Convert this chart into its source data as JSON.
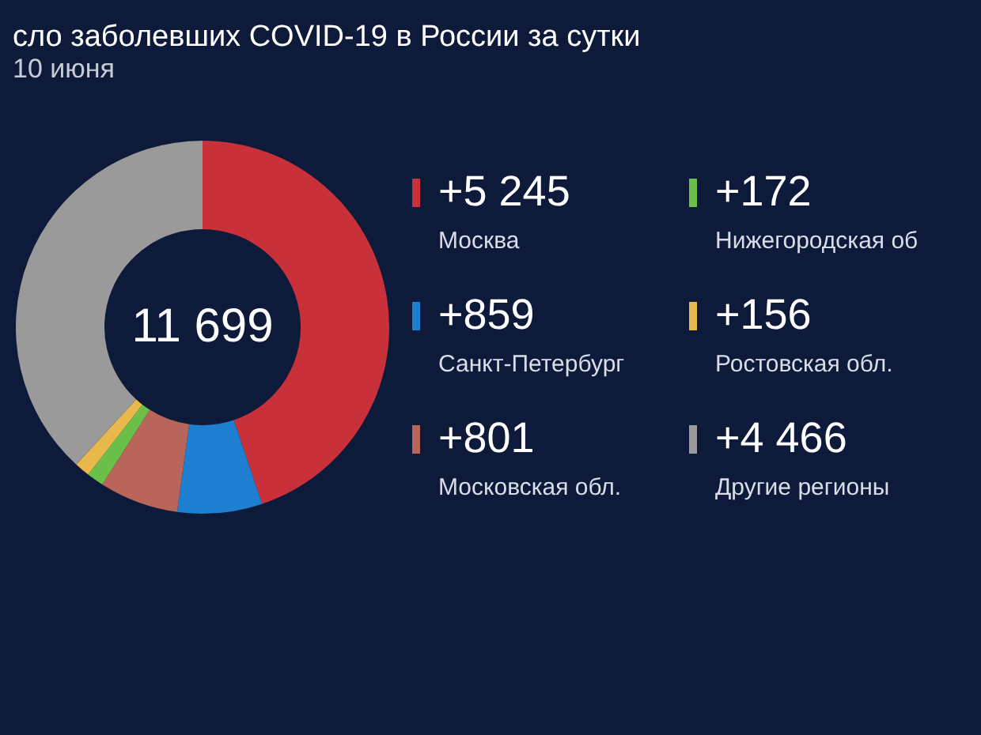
{
  "chart_data": {
    "type": "donut",
    "title": "сло заболевших COVID-19 в России за сутки",
    "subtitle": "10 июня",
    "categories": [
      "Москва",
      "Санкт-Петербург",
      "Московская обл.",
      "Нижегородская об",
      "Ростовская обл.",
      "Другие регионы"
    ],
    "values": [
      5245,
      859,
      801,
      172,
      156,
      4466
    ],
    "colors": [
      "#c8303a",
      "#1e7fd0",
      "#b9655a",
      "#6cc04a",
      "#e8b84a",
      "#9a9a9a"
    ],
    "value_labels": [
      "+5 245",
      "+859",
      "+801",
      "+172",
      "+156",
      "+4 466"
    ],
    "annotations": [
      "11 699"
    ],
    "legend": "right"
  }
}
